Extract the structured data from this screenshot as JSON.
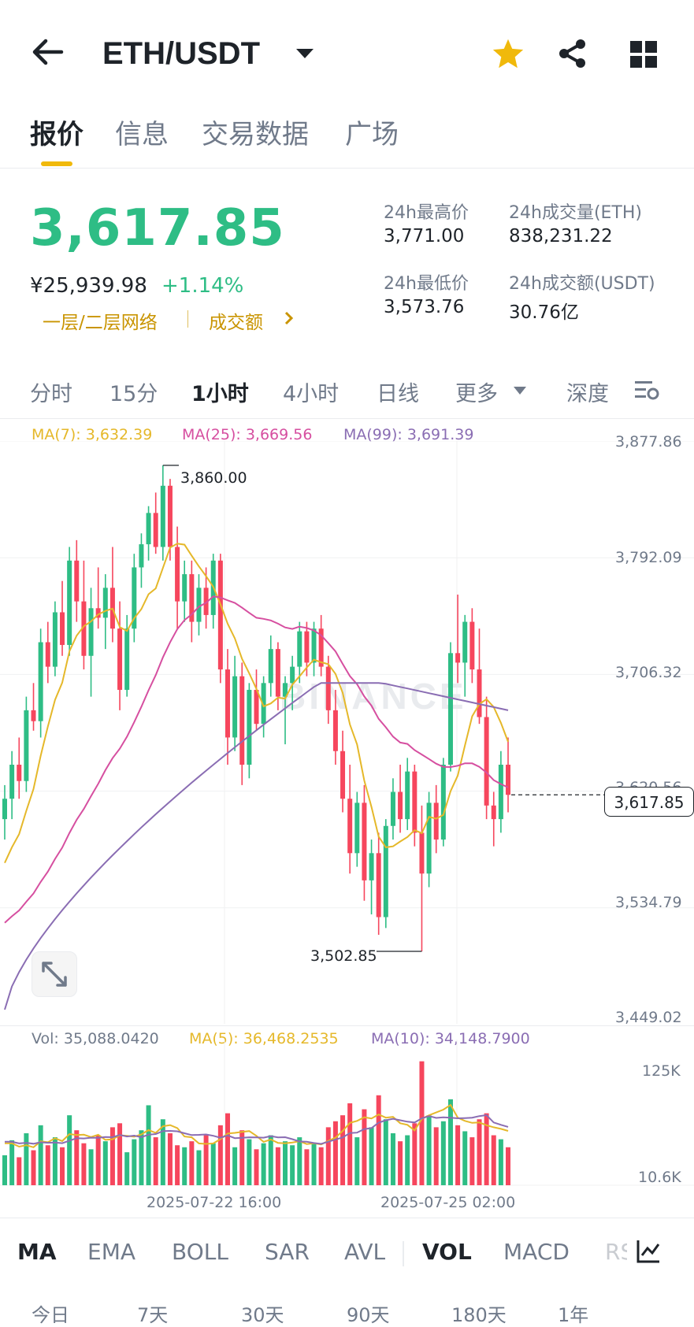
{
  "header": {
    "pair": "ETH/USDT"
  },
  "tabs": [
    {
      "label": "报价"
    },
    {
      "label": "信息"
    },
    {
      "label": "交易数据"
    },
    {
      "label": "广场"
    }
  ],
  "ticker": {
    "last_price": "3,617.85",
    "cny": "¥25,939.98",
    "change": "+1.14%",
    "network": "一层/二层网络",
    "turnover_link": "成交额",
    "high_label": "24h最高价",
    "high": "3,771.00",
    "low_label": "24h最低价",
    "low": "3,573.76",
    "vol_eth_label": "24h成交量(ETH)",
    "vol_eth": "838,231.22",
    "vol_usdt_label": "24h成交额(USDT)",
    "vol_usdt": "30.76亿"
  },
  "timeframes": [
    {
      "label": "分时"
    },
    {
      "label": "15分"
    },
    {
      "label": "1小时"
    },
    {
      "label": "4小时"
    },
    {
      "label": "日线"
    },
    {
      "label": "更多"
    },
    {
      "label": "深度"
    }
  ],
  "ma_legend": {
    "ma7": "MA(7): 3,632.39",
    "ma25": "MA(25): 3,669.56",
    "ma99": "MA(99): 3,691.39"
  },
  "price_axis": [
    "3,877.86",
    "3,792.09",
    "3,706.32",
    "3,620.56",
    "3,534.79",
    "3,449.02"
  ],
  "current_price_tag": "3,617.85",
  "annotations": {
    "high": "3,860.00",
    "low": "3,502.85"
  },
  "vol_legend": {
    "vol": "Vol: 35,088.0420",
    "ma5": "MA(5): 36,468.2535",
    "ma10": "MA(10): 34,148.7900"
  },
  "vol_axis": {
    "top": "125K",
    "bottom": "10.6K"
  },
  "time_axis": [
    "2025-07-22 16:00",
    "2025-07-25 02:00"
  ],
  "indicators": [
    {
      "label": "MA"
    },
    {
      "label": "EMA"
    },
    {
      "label": "BOLL"
    },
    {
      "label": "SAR"
    },
    {
      "label": "AVL"
    },
    {
      "label": "VOL"
    },
    {
      "label": "MACD"
    },
    {
      "label": "RSI"
    }
  ],
  "ranges": [
    {
      "label": "今日"
    },
    {
      "label": "7天"
    },
    {
      "label": "30天"
    },
    {
      "label": "90天"
    },
    {
      "label": "180天"
    },
    {
      "label": "1年"
    }
  ],
  "watermark": "BINANCE",
  "colors": {
    "up": "#2ebd85",
    "down": "#f6465d",
    "ma7": "#e5b82a",
    "ma25": "#d64fa0",
    "ma99": "#8a6db3",
    "accent": "#f0b90b"
  },
  "chart_data": {
    "type": "candlestick",
    "interval": "1h",
    "y_range": [
      3449.02,
      3877.86
    ],
    "last_price": 3617.85,
    "marked_high": 3860.0,
    "marked_low": 3502.85,
    "ohlc_approx": [
      [
        3600,
        3625,
        3585,
        3615
      ],
      [
        3615,
        3650,
        3600,
        3640
      ],
      [
        3640,
        3660,
        3615,
        3628
      ],
      [
        3628,
        3690,
        3620,
        3680
      ],
      [
        3680,
        3700,
        3665,
        3672
      ],
      [
        3672,
        3740,
        3660,
        3730
      ],
      [
        3730,
        3745,
        3700,
        3712
      ],
      [
        3712,
        3760,
        3705,
        3752
      ],
      [
        3752,
        3775,
        3720,
        3728
      ],
      [
        3728,
        3800,
        3720,
        3790
      ],
      [
        3790,
        3805,
        3745,
        3760
      ],
      [
        3760,
        3790,
        3710,
        3720
      ],
      [
        3720,
        3770,
        3690,
        3755
      ],
      [
        3755,
        3785,
        3740,
        3748
      ],
      [
        3748,
        3780,
        3725,
        3770
      ],
      [
        3770,
        3800,
        3730,
        3740
      ],
      [
        3740,
        3760,
        3680,
        3695
      ],
      [
        3695,
        3750,
        3690,
        3740
      ],
      [
        3740,
        3795,
        3730,
        3785
      ],
      [
        3785,
        3810,
        3770,
        3802
      ],
      [
        3802,
        3830,
        3790,
        3825
      ],
      [
        3825,
        3840,
        3795,
        3800
      ],
      [
        3800,
        3860,
        3790,
        3845
      ],
      [
        3845,
        3850,
        3790,
        3800
      ],
      [
        3800,
        3815,
        3740,
        3760
      ],
      [
        3760,
        3790,
        3745,
        3780
      ],
      [
        3780,
        3790,
        3730,
        3745
      ],
      [
        3745,
        3780,
        3735,
        3770
      ],
      [
        3770,
        3785,
        3740,
        3750
      ],
      [
        3750,
        3795,
        3740,
        3790
      ],
      [
        3790,
        3795,
        3700,
        3710
      ],
      [
        3710,
        3725,
        3640,
        3660
      ],
      [
        3660,
        3720,
        3650,
        3705
      ],
      [
        3705,
        3715,
        3625,
        3640
      ],
      [
        3640,
        3700,
        3630,
        3695
      ],
      [
        3695,
        3710,
        3665,
        3670
      ],
      [
        3670,
        3705,
        3660,
        3700
      ],
      [
        3700,
        3735,
        3690,
        3725
      ],
      [
        3725,
        3730,
        3680,
        3690
      ],
      [
        3690,
        3705,
        3655,
        3700
      ],
      [
        3700,
        3720,
        3680,
        3712
      ],
      [
        3712,
        3745,
        3700,
        3738
      ],
      [
        3738,
        3745,
        3705,
        3715
      ],
      [
        3715,
        3745,
        3705,
        3740
      ],
      [
        3740,
        3750,
        3705,
        3712
      ],
      [
        3712,
        3720,
        3670,
        3680
      ],
      [
        3680,
        3695,
        3640,
        3650
      ],
      [
        3650,
        3665,
        3605,
        3615
      ],
      [
        3615,
        3640,
        3560,
        3575
      ],
      [
        3575,
        3620,
        3565,
        3612
      ],
      [
        3612,
        3625,
        3540,
        3555
      ],
      [
        3555,
        3585,
        3530,
        3575
      ],
      [
        3575,
        3590,
        3515,
        3528
      ],
      [
        3528,
        3600,
        3520,
        3595
      ],
      [
        3595,
        3630,
        3585,
        3620
      ],
      [
        3620,
        3640,
        3590,
        3600
      ],
      [
        3600,
        3645,
        3592,
        3635
      ],
      [
        3635,
        3640,
        3580,
        3590
      ],
      [
        3590,
        3610,
        3502.85,
        3560
      ],
      [
        3560,
        3620,
        3550,
        3612
      ],
      [
        3612,
        3625,
        3575,
        3585
      ],
      [
        3585,
        3645,
        3580,
        3640
      ],
      [
        3640,
        3730,
        3635,
        3722
      ],
      [
        3722,
        3765,
        3700,
        3715
      ],
      [
        3715,
        3750,
        3690,
        3745
      ],
      [
        3745,
        3755,
        3700,
        3710
      ],
      [
        3710,
        3740,
        3670,
        3675
      ],
      [
        3675,
        3690,
        3600,
        3610
      ],
      [
        3610,
        3620,
        3580,
        3600
      ],
      [
        3600,
        3650,
        3590,
        3640
      ],
      [
        3640,
        3660,
        3605,
        3617.85
      ]
    ],
    "volume_approx": [
      30,
      45,
      28,
      52,
      35,
      60,
      40,
      48,
      38,
      70,
      55,
      42,
      36,
      50,
      44,
      58,
      62,
      33,
      46,
      55,
      80,
      48,
      66,
      52,
      40,
      38,
      44,
      35,
      50,
      42,
      60,
      72,
      38,
      55,
      46,
      36,
      42,
      50,
      38,
      44,
      40,
      48,
      36,
      42,
      38,
      58,
      64,
      70,
      82,
      48,
      76,
      58,
      90,
      66,
      52,
      44,
      50,
      62,
      124,
      70,
      58,
      64,
      86,
      60,
      54,
      48,
      66,
      72,
      50,
      46,
      38
    ]
  }
}
